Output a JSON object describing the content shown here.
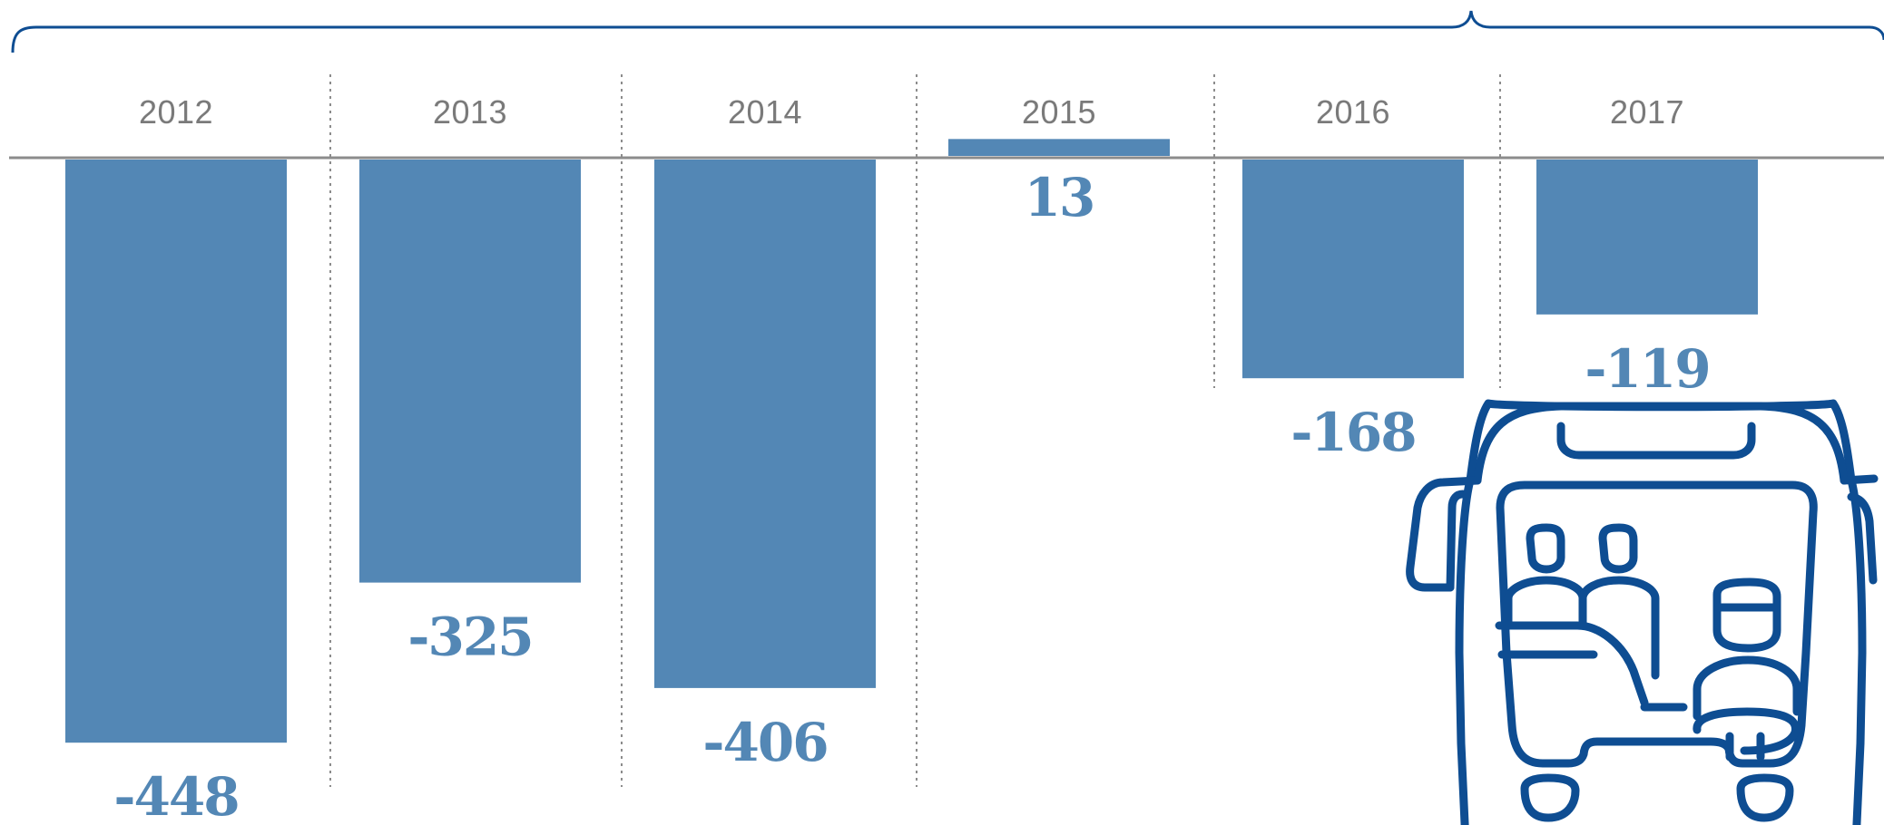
{
  "chart_data": {
    "type": "bar",
    "categories": [
      "2012",
      "2013",
      "2014",
      "2015",
      "2016",
      "2017"
    ],
    "values": [
      -448,
      -325,
      -406,
      13,
      -168,
      -119
    ],
    "value_labels": [
      "-448",
      "-325",
      "-406",
      "13",
      "-168",
      "-119"
    ],
    "title": "",
    "xlabel": "",
    "ylabel": "",
    "ylim": [
      -448,
      13
    ],
    "grid": false,
    "legend": "none",
    "colors": {
      "bar": "#5387b5",
      "value_label": "#5387b5",
      "axis": "#8c8c8c",
      "divider": "#8c8c8c",
      "brace": "#0e4d92",
      "icon": "#0e4d92"
    },
    "decorations": {
      "brace": "top-brace",
      "icon": "van-with-passengers-icon"
    }
  }
}
